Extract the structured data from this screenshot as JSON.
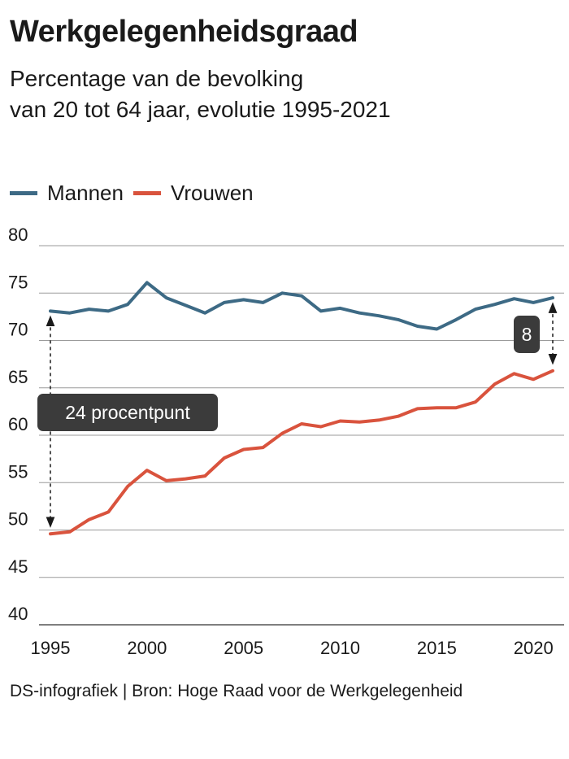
{
  "header": {
    "title": "Werkgelegenheidsgraad",
    "subtitle_line1": "Percentage van de bevolking",
    "subtitle_line2": "van 20 tot 64 jaar, evolutie 1995-2021"
  },
  "footer": {
    "source": "DS-infografiek | Bron: Hoge Raad voor de Werkgelegenheid"
  },
  "chart_data": {
    "type": "line",
    "x": [
      1995,
      1996,
      1997,
      1998,
      1999,
      2000,
      2001,
      2002,
      2003,
      2004,
      2005,
      2006,
      2007,
      2008,
      2009,
      2010,
      2011,
      2012,
      2013,
      2014,
      2015,
      2016,
      2017,
      2018,
      2019,
      2020,
      2021
    ],
    "series": [
      {
        "name": "Mannen",
        "color": "#3d6a85",
        "values": [
          73.1,
          72.9,
          73.3,
          73.1,
          73.8,
          76.1,
          74.5,
          73.7,
          72.9,
          74.0,
          74.3,
          74.0,
          75.0,
          74.7,
          73.1,
          73.4,
          72.9,
          72.6,
          72.2,
          71.5,
          71.2,
          72.2,
          73.3,
          73.8,
          74.4,
          74.0,
          74.5
        ]
      },
      {
        "name": "Vrouwen",
        "color": "#d9533d",
        "values": [
          49.6,
          49.8,
          51.1,
          51.9,
          54.6,
          56.3,
          55.2,
          55.4,
          55.7,
          57.6,
          58.5,
          58.7,
          60.2,
          61.2,
          60.9,
          61.5,
          61.4,
          61.6,
          62.0,
          62.8,
          62.9,
          62.9,
          63.5,
          65.4,
          66.5,
          65.9,
          66.8
        ]
      }
    ],
    "ylim": [
      40,
      80
    ],
    "yticks": [
      80,
      75,
      70,
      65,
      60,
      55,
      50,
      45,
      40
    ],
    "xticks": [
      1995,
      2000,
      2005,
      2010,
      2015,
      2020
    ],
    "grid": true,
    "legend_position": "top-left",
    "annotations": [
      {
        "text": "24 procentpunt",
        "x": 1995,
        "y_from": 73.1,
        "y_to": 49.6
      },
      {
        "text": "8",
        "x": 2021,
        "y_from": 74.5,
        "y_to": 66.8
      }
    ]
  }
}
